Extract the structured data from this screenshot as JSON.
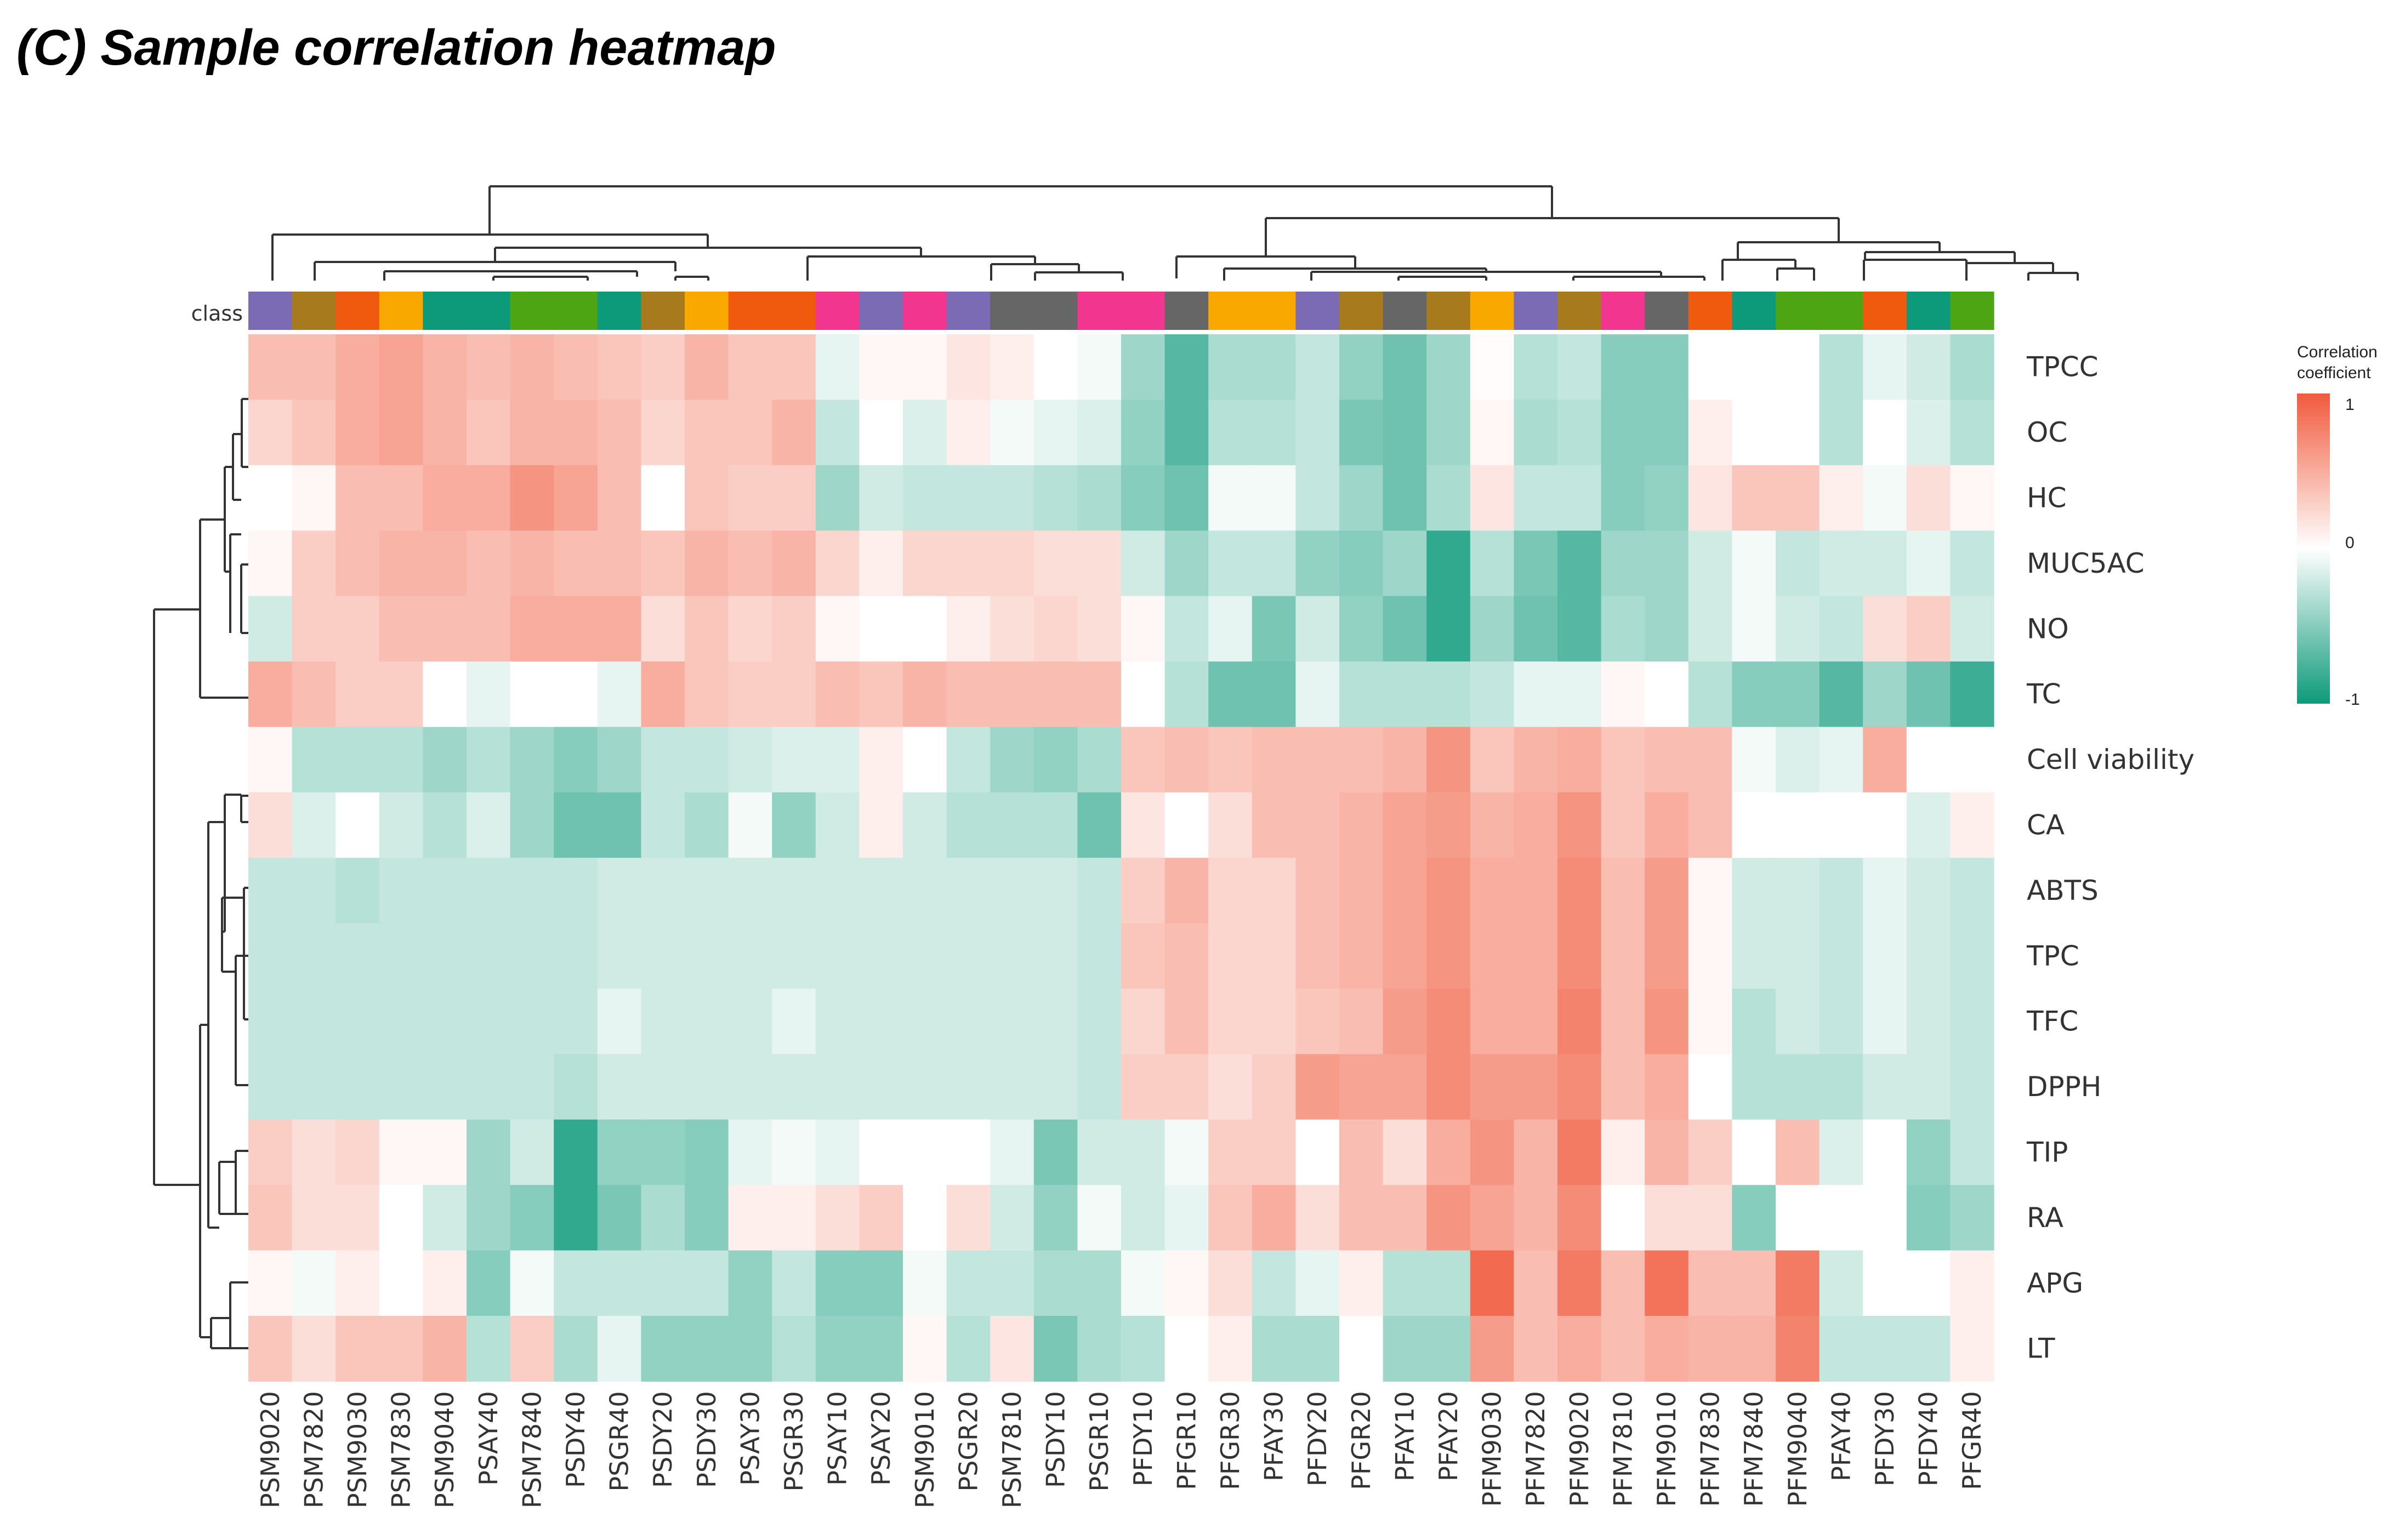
{
  "chart_data": {
    "type": "heatmap",
    "title": "(C) Sample correlation heatmap",
    "class_label": "class",
    "rows": [
      "TPCC",
      "OC",
      "HC",
      "MUC5AC",
      "NO",
      "TC",
      "Cell viability",
      "CA",
      "ABTS",
      "TPC",
      "TFC",
      "DPPH",
      "TIP",
      "RA",
      "APG",
      "LT"
    ],
    "columns": [
      "PSM9020",
      "PSM7820",
      "PSM9030",
      "PSM7830",
      "PSM9040",
      "PSAY40",
      "PSM7840",
      "PSDY40",
      "PSGR40",
      "PSDY20",
      "PSDY30",
      "PSAY30",
      "PSGR30",
      "PSAY10",
      "PSAY20",
      "PSM9010",
      "PSGR20",
      "PSM7810",
      "PSDY10",
      "PSGR10",
      "PFDY10",
      "PFGR10",
      "PFGR30",
      "PFAY30",
      "PFDY20",
      "PFGR20",
      "PFAY10",
      "PFAY20",
      "PFM9030",
      "PFM7820",
      "PFM9020",
      "PFM7810",
      "PFM9010",
      "PFM7830",
      "PFM7840",
      "PFM9040",
      "PFAY40",
      "PFDY30",
      "PFDY40",
      "PFGR40"
    ],
    "column_classes": [
      "purple",
      "brown",
      "orange",
      "gold",
      "teal",
      "teal",
      "green",
      "green",
      "teal",
      "brown",
      "gold",
      "orange",
      "orange",
      "pink",
      "purple",
      "pink",
      "purple",
      "gray",
      "gray",
      "pink",
      "pink",
      "gray",
      "gold",
      "gold",
      "purple",
      "brown",
      "gray",
      "brown",
      "gold",
      "purple",
      "brown",
      "pink",
      "gray",
      "orange",
      "teal",
      "green",
      "green",
      "orange",
      "teal",
      "green"
    ],
    "class_colors": {
      "purple": "#7b6bb5",
      "brown": "#a87a1e",
      "orange": "#f05a0f",
      "gold": "#f9a800",
      "teal": "#0d9a7a",
      "green": "#4ea513",
      "pink": "#f2358f",
      "gray": "#666666"
    },
    "values": [
      [
        0.4,
        0.4,
        0.5,
        0.55,
        0.45,
        0.4,
        0.45,
        0.4,
        0.35,
        0.3,
        0.45,
        0.35,
        0.35,
        -0.1,
        0.05,
        0.05,
        0.15,
        0.1,
        0.0,
        -0.05,
        -0.4,
        -0.7,
        -0.35,
        -0.35,
        -0.25,
        -0.45,
        -0.6,
        -0.4,
        0.02,
        -0.3,
        -0.25,
        -0.5,
        -0.5,
        0.0,
        0.0,
        0.0,
        -0.3,
        -0.1,
        -0.2,
        -0.35
      ],
      [
        0.25,
        0.35,
        0.5,
        0.55,
        0.45,
        0.35,
        0.45,
        0.45,
        0.4,
        0.25,
        0.35,
        0.35,
        0.45,
        -0.25,
        0.0,
        -0.15,
        0.1,
        -0.05,
        -0.1,
        -0.15,
        -0.45,
        -0.7,
        -0.3,
        -0.3,
        -0.25,
        -0.55,
        -0.6,
        -0.4,
        0.05,
        -0.35,
        -0.3,
        -0.5,
        -0.5,
        0.1,
        0.0,
        0.0,
        -0.3,
        0.0,
        -0.15,
        -0.3
      ],
      [
        0.0,
        0.05,
        0.4,
        0.4,
        0.5,
        0.5,
        0.65,
        0.55,
        0.4,
        0.0,
        0.35,
        0.3,
        0.3,
        -0.4,
        -0.2,
        -0.25,
        -0.25,
        -0.25,
        -0.3,
        -0.35,
        -0.5,
        -0.6,
        -0.05,
        -0.05,
        -0.25,
        -0.4,
        -0.6,
        -0.35,
        0.15,
        -0.25,
        -0.25,
        -0.5,
        -0.45,
        0.15,
        0.35,
        0.35,
        0.1,
        -0.05,
        0.2,
        0.05
      ],
      [
        0.05,
        0.3,
        0.4,
        0.45,
        0.45,
        0.4,
        0.45,
        0.4,
        0.4,
        0.35,
        0.45,
        0.4,
        0.45,
        0.25,
        0.1,
        0.25,
        0.25,
        0.25,
        0.2,
        0.2,
        -0.2,
        -0.4,
        -0.25,
        -0.25,
        -0.45,
        -0.5,
        -0.4,
        -0.85,
        -0.3,
        -0.55,
        -0.7,
        -0.4,
        -0.4,
        -0.2,
        -0.05,
        -0.25,
        -0.2,
        -0.2,
        -0.1,
        -0.25
      ],
      [
        -0.2,
        0.3,
        0.3,
        0.4,
        0.4,
        0.4,
        0.5,
        0.5,
        0.5,
        0.2,
        0.35,
        0.25,
        0.3,
        0.05,
        0.0,
        0.0,
        0.1,
        0.2,
        0.25,
        0.2,
        0.05,
        -0.25,
        -0.1,
        -0.55,
        -0.2,
        -0.45,
        -0.6,
        -0.85,
        -0.4,
        -0.6,
        -0.7,
        -0.35,
        -0.4,
        -0.2,
        -0.05,
        -0.2,
        -0.25,
        0.2,
        0.3,
        -0.2
      ],
      [
        0.5,
        0.4,
        0.3,
        0.3,
        0.0,
        -0.1,
        0.0,
        0.0,
        -0.1,
        0.5,
        0.35,
        0.3,
        0.3,
        0.4,
        0.35,
        0.45,
        0.4,
        0.4,
        0.4,
        0.4,
        0.0,
        -0.3,
        -0.6,
        -0.6,
        -0.1,
        -0.3,
        -0.3,
        -0.3,
        -0.25,
        -0.1,
        -0.1,
        0.05,
        0.0,
        -0.3,
        -0.5,
        -0.5,
        -0.7,
        -0.4,
        -0.6,
        -0.8
      ],
      [
        0.05,
        -0.3,
        -0.3,
        -0.3,
        -0.4,
        -0.3,
        -0.4,
        -0.5,
        -0.4,
        -0.25,
        -0.25,
        -0.2,
        -0.15,
        -0.15,
        0.1,
        0.0,
        -0.25,
        -0.4,
        -0.45,
        -0.35,
        0.35,
        0.4,
        0.35,
        0.4,
        0.4,
        0.4,
        0.45,
        0.65,
        0.35,
        0.45,
        0.5,
        0.35,
        0.4,
        0.4,
        -0.05,
        -0.15,
        -0.1,
        0.5,
        0.0,
        0.0
      ],
      [
        0.2,
        -0.15,
        0.0,
        -0.2,
        -0.3,
        -0.15,
        -0.4,
        -0.6,
        -0.6,
        -0.25,
        -0.35,
        -0.05,
        -0.45,
        -0.2,
        0.1,
        -0.2,
        -0.3,
        -0.3,
        -0.3,
        -0.6,
        0.15,
        0.0,
        0.2,
        0.4,
        0.4,
        0.45,
        0.55,
        0.6,
        0.45,
        0.5,
        0.65,
        0.35,
        0.5,
        0.4,
        0.0,
        0.0,
        0.0,
        0.0,
        -0.15,
        0.1
      ],
      [
        -0.25,
        -0.25,
        -0.3,
        -0.25,
        -0.25,
        -0.25,
        -0.25,
        -0.25,
        -0.2,
        -0.2,
        -0.2,
        -0.2,
        -0.2,
        -0.2,
        -0.2,
        -0.2,
        -0.2,
        -0.2,
        -0.2,
        -0.25,
        0.3,
        0.45,
        0.25,
        0.25,
        0.4,
        0.45,
        0.55,
        0.65,
        0.5,
        0.5,
        0.7,
        0.4,
        0.6,
        0.05,
        -0.2,
        -0.2,
        -0.25,
        -0.1,
        -0.2,
        -0.25
      ],
      [
        -0.25,
        -0.25,
        -0.25,
        -0.25,
        -0.25,
        -0.25,
        -0.25,
        -0.25,
        -0.2,
        -0.2,
        -0.2,
        -0.2,
        -0.2,
        -0.2,
        -0.2,
        -0.2,
        -0.2,
        -0.2,
        -0.2,
        -0.25,
        0.35,
        0.4,
        0.25,
        0.25,
        0.4,
        0.45,
        0.55,
        0.65,
        0.5,
        0.5,
        0.7,
        0.4,
        0.6,
        0.05,
        -0.2,
        -0.2,
        -0.25,
        -0.1,
        -0.2,
        -0.25
      ],
      [
        -0.25,
        -0.25,
        -0.25,
        -0.25,
        -0.25,
        -0.25,
        -0.25,
        -0.25,
        -0.1,
        -0.2,
        -0.2,
        -0.2,
        -0.1,
        -0.2,
        -0.2,
        -0.2,
        -0.2,
        -0.2,
        -0.2,
        -0.25,
        0.25,
        0.4,
        0.25,
        0.25,
        0.35,
        0.4,
        0.6,
        0.7,
        0.5,
        0.5,
        0.75,
        0.4,
        0.65,
        0.05,
        -0.3,
        -0.2,
        -0.25,
        -0.1,
        -0.2,
        -0.25
      ],
      [
        -0.25,
        -0.25,
        -0.25,
        -0.25,
        -0.25,
        -0.25,
        -0.25,
        -0.3,
        -0.2,
        -0.2,
        -0.2,
        -0.2,
        -0.2,
        -0.2,
        -0.2,
        -0.2,
        -0.2,
        -0.2,
        -0.2,
        -0.25,
        0.3,
        0.3,
        0.2,
        0.3,
        0.6,
        0.55,
        0.55,
        0.7,
        0.6,
        0.6,
        0.7,
        0.4,
        0.5,
        0.0,
        -0.3,
        -0.3,
        -0.3,
        -0.2,
        -0.2,
        -0.25
      ],
      [
        0.3,
        0.2,
        0.25,
        0.05,
        0.05,
        -0.4,
        -0.2,
        -0.85,
        -0.45,
        -0.45,
        -0.5,
        -0.1,
        -0.05,
        -0.1,
        0.0,
        0.0,
        0.0,
        -0.1,
        -0.55,
        -0.2,
        -0.2,
        -0.05,
        0.3,
        0.3,
        0.0,
        0.4,
        0.2,
        0.5,
        0.65,
        0.45,
        0.8,
        0.1,
        0.45,
        0.3,
        0.0,
        0.4,
        -0.15,
        0.0,
        -0.45,
        -0.25
      ],
      [
        0.35,
        0.2,
        0.2,
        0.0,
        -0.2,
        -0.4,
        -0.5,
        -0.85,
        -0.55,
        -0.35,
        -0.5,
        0.1,
        0.1,
        0.2,
        0.3,
        0.0,
        0.2,
        -0.2,
        -0.45,
        -0.05,
        -0.2,
        -0.1,
        0.35,
        0.5,
        0.2,
        0.4,
        0.4,
        0.65,
        0.55,
        0.45,
        0.7,
        0.0,
        0.2,
        0.2,
        -0.5,
        0.0,
        0.0,
        0.0,
        -0.5,
        -0.4
      ],
      [
        0.05,
        -0.05,
        0.1,
        0.0,
        0.1,
        -0.5,
        -0.05,
        -0.25,
        -0.25,
        -0.25,
        -0.25,
        -0.45,
        -0.25,
        -0.5,
        -0.5,
        -0.05,
        -0.25,
        -0.25,
        -0.35,
        -0.35,
        -0.05,
        0.05,
        0.2,
        -0.25,
        -0.1,
        0.1,
        -0.3,
        -0.3,
        0.9,
        0.4,
        0.8,
        0.4,
        0.85,
        0.4,
        0.4,
        0.8,
        -0.2,
        0.0,
        0.0,
        0.1
      ],
      [
        0.35,
        0.2,
        0.35,
        0.35,
        0.45,
        -0.3,
        0.3,
        -0.35,
        -0.1,
        -0.45,
        -0.45,
        -0.45,
        -0.3,
        -0.45,
        -0.45,
        0.05,
        -0.3,
        0.15,
        -0.55,
        -0.35,
        -0.3,
        0.0,
        0.1,
        -0.35,
        -0.35,
        0.0,
        -0.4,
        -0.4,
        0.6,
        0.4,
        0.5,
        0.4,
        0.5,
        0.45,
        0.45,
        0.75,
        -0.25,
        -0.25,
        -0.25,
        0.1
      ]
    ],
    "legend": {
      "title_line1": "Correlation",
      "title_line2": "coefficient",
      "ticks": [
        "1",
        "0",
        "-1"
      ],
      "range": [
        -1,
        1
      ],
      "placement": "right"
    },
    "color_scale": {
      "low": "#0d9a7a",
      "mid": "#ffffff",
      "high": "#f05a3c"
    }
  }
}
